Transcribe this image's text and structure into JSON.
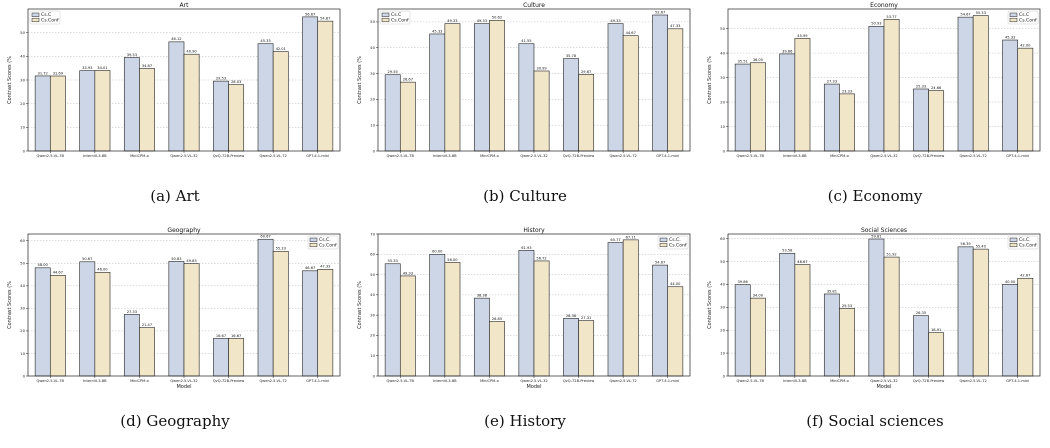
{
  "colors": {
    "cs_c": "#ccd6e6",
    "cs_conf": "#f2e6c9",
    "edge": "#222222",
    "grid": "#bbbbbb"
  },
  "chart_data": [
    {
      "type": "bar",
      "title": "Art",
      "caption": "(a) Art",
      "xlabel": "",
      "ylabel": "Contrast Scores (%",
      "categories": [
        "Qwen2.5-VL-7B",
        "InternVL3-8B",
        "MiniCPM-o",
        "Qwen2.5-VL-32",
        "QvQ-72B-Preview",
        "Qwen2.5-VL-72",
        "GPT-4.1-mini"
      ],
      "series": [
        {
          "name": "Cs.C",
          "values": [
            31.72,
            33.93,
            39.53,
            46.12,
            29.53,
            45.33,
            56.67
          ]
        },
        {
          "name": "Cs.Conf",
          "values": [
            31.69,
            34.01,
            34.87,
            40.9,
            28.03,
            42.01,
            54.87
          ]
        }
      ],
      "ylim": [
        0,
        60
      ],
      "yticks": [
        0,
        10,
        20,
        30,
        40,
        50
      ],
      "legend": "top-left",
      "grid": true
    },
    {
      "type": "bar",
      "title": "Culture",
      "caption": "(b) Culture",
      "xlabel": "",
      "ylabel": "Contrast Scores (%",
      "categories": [
        "Qwen2.5-VL-7B",
        "InternVL3-8B",
        "MiniCPM-o",
        "Qwen2.5-VL-32",
        "QvQ-72B-Preview",
        "Qwen2.5-VL-72",
        "GPT-4.1-mini"
      ],
      "series": [
        {
          "name": "Cs.C",
          "values": [
            29.55,
            45.33,
            49.33,
            41.55,
            35.78,
            49.33,
            52.67
          ]
        },
        {
          "name": "Cs.Conf",
          "values": [
            26.67,
            49.33,
            50.62,
            30.99,
            29.67,
            44.67,
            47.33
          ]
        }
      ],
      "ylim": [
        0,
        55
      ],
      "yticks": [
        0,
        10,
        20,
        30,
        40,
        50
      ],
      "legend": "top-left",
      "grid": true
    },
    {
      "type": "bar",
      "title": "Economy",
      "caption": "(c) Economy",
      "xlabel": "",
      "ylabel": "Contrast Scores (%",
      "categories": [
        "Qwen2.5-VL-7B",
        "InternVL3-8B",
        "MiniCPM-o",
        "Qwen2.5-VL-32",
        "QvQ-72B-Preview",
        "Qwen2.5-VL-72",
        "GPT-4.1-mini"
      ],
      "series": [
        {
          "name": "Cs.C",
          "values": [
            35.51,
            39.66,
            27.33,
            50.93,
            25.33,
            54.67,
            45.33
          ]
        },
        {
          "name": "Cs.Conf",
          "values": [
            36.05,
            45.99,
            23.33,
            53.77,
            24.66,
            55.33,
            42.0
          ]
        }
      ],
      "ylim": [
        0,
        58
      ],
      "yticks": [
        0,
        10,
        20,
        30,
        40,
        50
      ],
      "legend": "top-right",
      "grid": true
    },
    {
      "type": "bar",
      "title": "Geography",
      "caption": "(d) Geography",
      "xlabel": "Model",
      "ylabel": "Contrast Scores (%",
      "categories": [
        "Qwen2.5-VL-7B",
        "InternVL3-8B",
        "MiniCPM-o",
        "Qwen2.5-VL-32",
        "QvQ-72B-Preview",
        "Qwen2.5-VL-72",
        "GPT-4.1-mini"
      ],
      "series": [
        {
          "name": "Cs.C.",
          "values": [
            48.0,
            50.67,
            27.33,
            50.83,
            16.67,
            60.67,
            46.67
          ]
        },
        {
          "name": "Cs.Conf",
          "values": [
            44.67,
            46.0,
            21.47,
            49.83,
            16.67,
            55.33,
            47.33
          ]
        }
      ],
      "ylim": [
        0,
        63
      ],
      "yticks": [
        0,
        10,
        20,
        30,
        40,
        50,
        60
      ],
      "legend": "top-right",
      "grid": true
    },
    {
      "type": "bar",
      "title": "History",
      "caption": "(e) History",
      "xlabel": "Model",
      "ylabel": "Contrast Scores (%",
      "categories": [
        "Qwen2.5-VL-7B",
        "InternVL3-8B",
        "MiniCPM-o",
        "Qwen2.5-VL-32",
        "QvQ-72B-Preview",
        "Qwen2.5-VL-72",
        "GPT-4.1-mini"
      ],
      "series": [
        {
          "name": "Cs.C.",
          "values": [
            55.33,
            60.0,
            38.38,
            61.93,
            28.38,
            65.77,
            54.67
          ]
        },
        {
          "name": "Cs.Conf",
          "values": [
            49.33,
            56.0,
            26.85,
            56.72,
            27.31,
            67.11,
            44.0
          ]
        }
      ],
      "ylim": [
        0,
        70
      ],
      "yticks": [
        0,
        10,
        20,
        30,
        40,
        50,
        60,
        70
      ],
      "legend": "top-right",
      "grid": true
    },
    {
      "type": "bar",
      "title": "Social Sciences",
      "caption": "(f) Social sciences",
      "xlabel": "Model",
      "ylabel": "Contrast Scores (%",
      "categories": [
        "Qwen2.5-VL-7B",
        "InternVL3-8B",
        "MiniCPM-o",
        "Qwen2.5-VL-32",
        "QvQ-72B-Preview",
        "Qwen2.5-VL-72",
        "GPT-4.1-mini"
      ],
      "series": [
        {
          "name": "Cs.C.",
          "values": [
            39.86,
            53.58,
            35.81,
            59.81,
            26.35,
            56.39,
            40.0
          ]
        },
        {
          "name": "Cs.Conf",
          "values": [
            34.0,
            48.67,
            29.53,
            51.92,
            18.91,
            55.4,
            42.67
          ]
        }
      ],
      "ylim": [
        0,
        62
      ],
      "yticks": [
        0,
        10,
        20,
        30,
        40,
        50,
        60
      ],
      "legend": "top-right",
      "grid": true
    }
  ]
}
